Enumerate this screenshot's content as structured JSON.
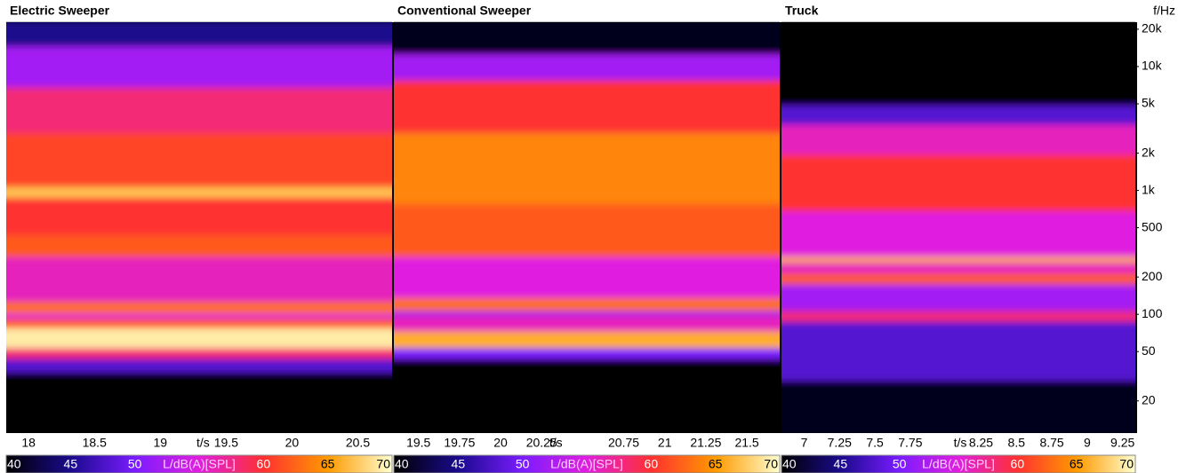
{
  "chart_data": [
    {
      "type": "spectrogram",
      "title": "Electric Sweeper",
      "xlabel": "t/s",
      "xlim": [
        17.83,
        20.76
      ],
      "xticks": [
        18,
        18.5,
        19,
        19.5,
        20,
        20.5
      ],
      "ylim": [
        11,
        22800
      ],
      "log_y": true,
      "bands": [
        {
          "f": [
            11,
            35
          ],
          "level": 40
        },
        {
          "f": [
            35,
            45
          ],
          "level": 48
        },
        {
          "f": [
            45,
            55
          ],
          "level": 58
        },
        {
          "f": [
            55,
            80
          ],
          "level": 69
        },
        {
          "f": [
            80,
            95
          ],
          "level": 62
        },
        {
          "f": [
            95,
            105
          ],
          "level": 55
        },
        {
          "f": [
            105,
            130
          ],
          "level": 63
        },
        {
          "f": [
            130,
            300
          ],
          "level": 56
        },
        {
          "f": [
            300,
            450
          ],
          "level": 62
        },
        {
          "f": [
            450,
            900
          ],
          "level": 60
        },
        {
          "f": [
            900,
            1100
          ],
          "level": 67
        },
        {
          "f": [
            1100,
            3000
          ],
          "level": 61
        },
        {
          "f": [
            3000,
            7000
          ],
          "level": 58
        },
        {
          "f": [
            7000,
            15000
          ],
          "level": 52
        },
        {
          "f": [
            15000,
            22800
          ],
          "level": 45
        }
      ],
      "colorbar": {
        "label": "L/dB(A)[SPL]",
        "label_at": 55,
        "lim": [
          40,
          70
        ],
        "ticks": [
          40,
          45,
          50,
          60,
          65,
          70
        ],
        "colors": [
          "#000000",
          "#1a0a8c",
          "#7a1cff",
          "#e01ee0",
          "#ff3030",
          "#ff9a00",
          "#ffffd0"
        ]
      }
    },
    {
      "type": "spectrogram",
      "title": "Conventional Sweeper",
      "xlabel": "t/s",
      "xlim": [
        19.35,
        21.7
      ],
      "xticks": [
        19.5,
        19.75,
        20,
        20.25,
        20.75,
        21,
        21.25,
        21.5
      ],
      "ylim": [
        11,
        22800
      ],
      "log_y": true,
      "bands": [
        {
          "f": [
            11,
            45
          ],
          "level": 40
        },
        {
          "f": [
            45,
            55
          ],
          "level": 50
        },
        {
          "f": [
            55,
            75
          ],
          "level": 66
        },
        {
          "f": [
            75,
            100
          ],
          "level": 56
        },
        {
          "f": [
            100,
            110
          ],
          "level": 52
        },
        {
          "f": [
            110,
            140
          ],
          "level": 63
        },
        {
          "f": [
            140,
            300
          ],
          "level": 55
        },
        {
          "f": [
            300,
            800
          ],
          "level": 62
        },
        {
          "f": [
            800,
            3000
          ],
          "level": 64
        },
        {
          "f": [
            3000,
            8000
          ],
          "level": 60
        },
        {
          "f": [
            8000,
            13000
          ],
          "level": 52
        },
        {
          "f": [
            13000,
            22800
          ],
          "level": 41
        }
      ],
      "colorbar": {
        "label": "L/dB(A)[SPL]",
        "label_at": 55,
        "lim": [
          40,
          70
        ],
        "ticks": [
          40,
          45,
          50,
          60,
          65,
          70
        ],
        "colors": [
          "#000000",
          "#1a0a8c",
          "#7a1cff",
          "#e01ee0",
          "#ff3030",
          "#ff9a00",
          "#ffffd0"
        ]
      }
    },
    {
      "type": "spectrogram",
      "title": "Truck",
      "xlabel": "t/s",
      "xlim": [
        6.84,
        9.34
      ],
      "xticks": [
        7,
        7.25,
        7.5,
        7.75,
        8.25,
        8.5,
        8.75,
        9,
        9.25
      ],
      "ylim": [
        11,
        22800
      ],
      "log_y": true,
      "ylabel": "f/Hz",
      "yticks": [
        20,
        50,
        100,
        200,
        500,
        {
          "value": 1000,
          "label": "1k"
        },
        {
          "value": 2000,
          "label": "2k"
        },
        {
          "value": 5000,
          "label": "5k"
        },
        {
          "value": 10000,
          "label": "10k"
        },
        {
          "value": 20000,
          "label": "20k"
        }
      ],
      "bands": [
        {
          "f": [
            11,
            30
          ],
          "level": 41
        },
        {
          "f": [
            30,
            90
          ],
          "level": 48
        },
        {
          "f": [
            90,
            110
          ],
          "level": 58
        },
        {
          "f": [
            110,
            180
          ],
          "level": 52
        },
        {
          "f": [
            180,
            220
          ],
          "level": 62
        },
        {
          "f": [
            220,
            270
          ],
          "level": 56
        },
        {
          "f": [
            270,
            300
          ],
          "level": 66
        },
        {
          "f": [
            300,
            700
          ],
          "level": 55
        },
        {
          "f": [
            700,
            2000
          ],
          "level": 60
        },
        {
          "f": [
            2000,
            3500
          ],
          "level": 56
        },
        {
          "f": [
            3500,
            5000
          ],
          "level": 48
        },
        {
          "f": [
            5000,
            22800
          ],
          "level": 40
        }
      ],
      "colorbar": {
        "label": "L/dB(A)[SPL]",
        "label_at": 55,
        "lim": [
          40,
          70
        ],
        "ticks": [
          40,
          45,
          50,
          60,
          65,
          70
        ],
        "colors": [
          "#000000",
          "#1a0a8c",
          "#7a1cff",
          "#e01ee0",
          "#ff3030",
          "#ff9a00",
          "#ffffd0"
        ]
      }
    }
  ]
}
